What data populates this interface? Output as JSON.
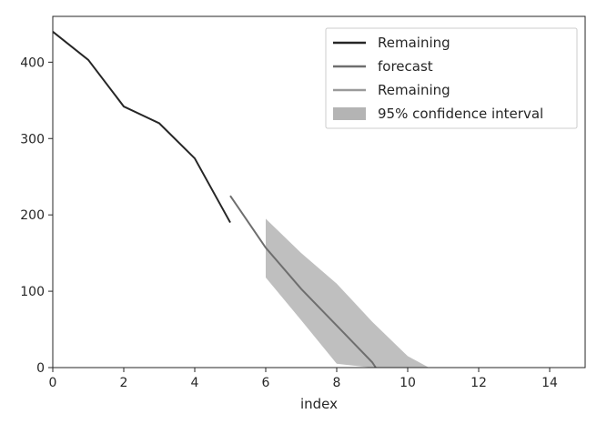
{
  "chart_data": {
    "type": "line",
    "xlabel": "index",
    "ylabel": "",
    "xlim": [
      0,
      15
    ],
    "ylim": [
      0,
      460
    ],
    "xticks": [
      0,
      2,
      4,
      6,
      8,
      10,
      12,
      14
    ],
    "yticks": [
      0,
      100,
      200,
      300,
      400
    ],
    "grid": false,
    "legend_position": "top-right",
    "series": [
      {
        "name": "Remaining",
        "color": "#262626",
        "x": [
          0,
          1,
          2,
          3,
          4,
          5
        ],
        "y": [
          440,
          403,
          342,
          320,
          274,
          190
        ]
      },
      {
        "name": "forecast",
        "color": "#6e6e6e",
        "x": [
          5,
          6,
          7,
          8,
          9,
          9.1
        ],
        "y": [
          225,
          157,
          103,
          55,
          7,
          0
        ]
      },
      {
        "name": "Remaining",
        "color": "#9a9a9a",
        "x": [],
        "y": []
      }
    ],
    "confidence_band": {
      "name": "95% confidence interval",
      "color": "#b4b4b4",
      "x": [
        6,
        7,
        8,
        9,
        10,
        10.6
      ],
      "upper": [
        195,
        150,
        110,
        60,
        15,
        0
      ],
      "lower": [
        118,
        62,
        5,
        0,
        0,
        0
      ]
    }
  }
}
